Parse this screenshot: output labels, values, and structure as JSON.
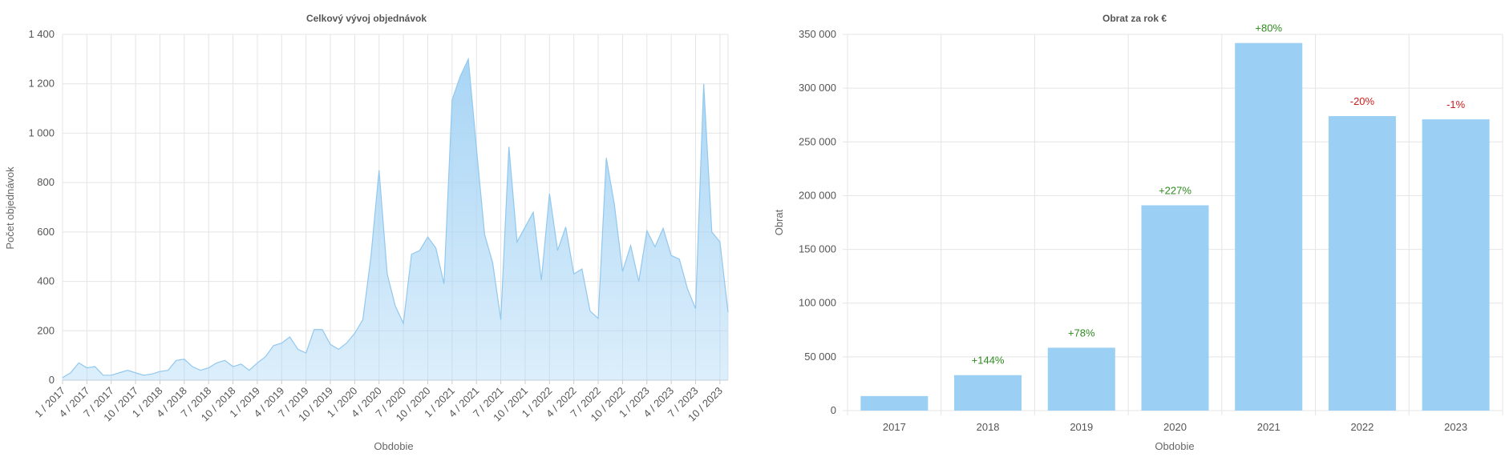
{
  "colors": {
    "area_fill": "#a8d5f5",
    "area_line": "#92c8ee",
    "bar_fill": "#9ccff4",
    "positive": "#2e8b1f",
    "negative": "#d11a1a",
    "grid": "#e4e4e4"
  },
  "chart_data": [
    {
      "type": "area",
      "title": "Celkový vývoj objednávok",
      "xlabel": "Obdobie",
      "ylabel": "Počet objednávok",
      "ylim": [
        0,
        1400
      ],
      "yticks": [
        "0",
        "200",
        "400",
        "600",
        "800",
        "1 000",
        "1 200",
        "1 400"
      ],
      "ytick_values": [
        0,
        200,
        400,
        600,
        800,
        1000,
        1200,
        1400
      ],
      "grid": true,
      "x": [
        "1 / 2017",
        "2 / 2017",
        "3 / 2017",
        "4 / 2017",
        "5 / 2017",
        "6 / 2017",
        "7 / 2017",
        "8 / 2017",
        "9 / 2017",
        "10 / 2017",
        "11 / 2017",
        "12 / 2017",
        "1 / 2018",
        "2 / 2018",
        "3 / 2018",
        "4 / 2018",
        "5 / 2018",
        "6 / 2018",
        "7 / 2018",
        "8 / 2018",
        "9 / 2018",
        "10 / 2018",
        "11 / 2018",
        "12 / 2018",
        "1 / 2019",
        "2 / 2019",
        "3 / 2019",
        "4 / 2019",
        "5 / 2019",
        "6 / 2019",
        "7 / 2019",
        "8 / 2019",
        "9 / 2019",
        "10 / 2019",
        "11 / 2019",
        "12 / 2019",
        "1 / 2020",
        "2 / 2020",
        "3 / 2020",
        "4 / 2020",
        "5 / 2020",
        "6 / 2020",
        "7 / 2020",
        "8 / 2020",
        "9 / 2020",
        "10 / 2020",
        "11 / 2020",
        "12 / 2020",
        "1 / 2021",
        "2 / 2021",
        "3 / 2021",
        "4 / 2021",
        "5 / 2021",
        "6 / 2021",
        "7 / 2021",
        "8 / 2021",
        "9 / 2021",
        "10 / 2021",
        "11 / 2021",
        "12 / 2021",
        "1 / 2022",
        "2 / 2022",
        "3 / 2022",
        "4 / 2022",
        "5 / 2022",
        "6 / 2022",
        "7 / 2022",
        "8 / 2022",
        "9 / 2022",
        "10 / 2022",
        "11 / 2022",
        "12 / 2022",
        "1 / 2023",
        "2 / 2023",
        "3 / 2023",
        "4 / 2023",
        "5 / 2023",
        "6 / 2023",
        "7 / 2023",
        "8 / 2023",
        "9 / 2023",
        "10 / 2023",
        "11 / 2023"
      ],
      "xticks": [
        "1 / 2017",
        "4 / 2017",
        "7 / 2017",
        "10 / 2017",
        "1 / 2018",
        "4 / 2018",
        "7 / 2018",
        "10 / 2018",
        "1 / 2019",
        "4 / 2019",
        "7 / 2019",
        "10 / 2019",
        "1 / 2020",
        "4 / 2020",
        "7 / 2020",
        "10 / 2020",
        "1 / 2021",
        "4 / 2021",
        "7 / 2021",
        "10 / 2021",
        "1 / 2022",
        "4 / 2022",
        "7 / 2022",
        "10 / 2022",
        "1 / 2023",
        "4 / 2023",
        "7 / 2023",
        "10 / 2023"
      ],
      "values": [
        10,
        30,
        70,
        50,
        55,
        20,
        20,
        30,
        40,
        30,
        20,
        25,
        35,
        40,
        80,
        85,
        55,
        40,
        50,
        70,
        80,
        55,
        65,
        40,
        70,
        95,
        140,
        150,
        175,
        125,
        110,
        205,
        205,
        145,
        125,
        150,
        190,
        245,
        500,
        850,
        430,
        300,
        230,
        510,
        525,
        580,
        535,
        390,
        1135,
        1230,
        1300,
        940,
        590,
        475,
        245,
        945,
        560,
        620,
        680,
        405,
        755,
        525,
        620,
        430,
        450,
        280,
        250,
        900,
        710,
        440,
        545,
        400,
        605,
        540,
        615,
        505,
        490,
        370,
        290,
        1200,
        600,
        560,
        275
      ]
    },
    {
      "type": "bar",
      "title": "Obrat za rok €",
      "xlabel": "Obdobie",
      "ylabel": "Obrat",
      "ylim": [
        0,
        350000
      ],
      "yticks": [
        "0",
        "50 000",
        "100 000",
        "150 000",
        "200 000",
        "250 000",
        "300 000",
        "350 000"
      ],
      "ytick_values": [
        0,
        50000,
        100000,
        150000,
        200000,
        250000,
        300000,
        350000
      ],
      "grid": true,
      "categories": [
        "2017",
        "2018",
        "2019",
        "2020",
        "2021",
        "2022",
        "2023"
      ],
      "values": [
        13500,
        33000,
        58500,
        191000,
        342000,
        274000,
        271000
      ],
      "changes": [
        "",
        "+144%",
        "+78%",
        "+227%",
        "+80%",
        "-20%",
        "-1%"
      ]
    }
  ]
}
